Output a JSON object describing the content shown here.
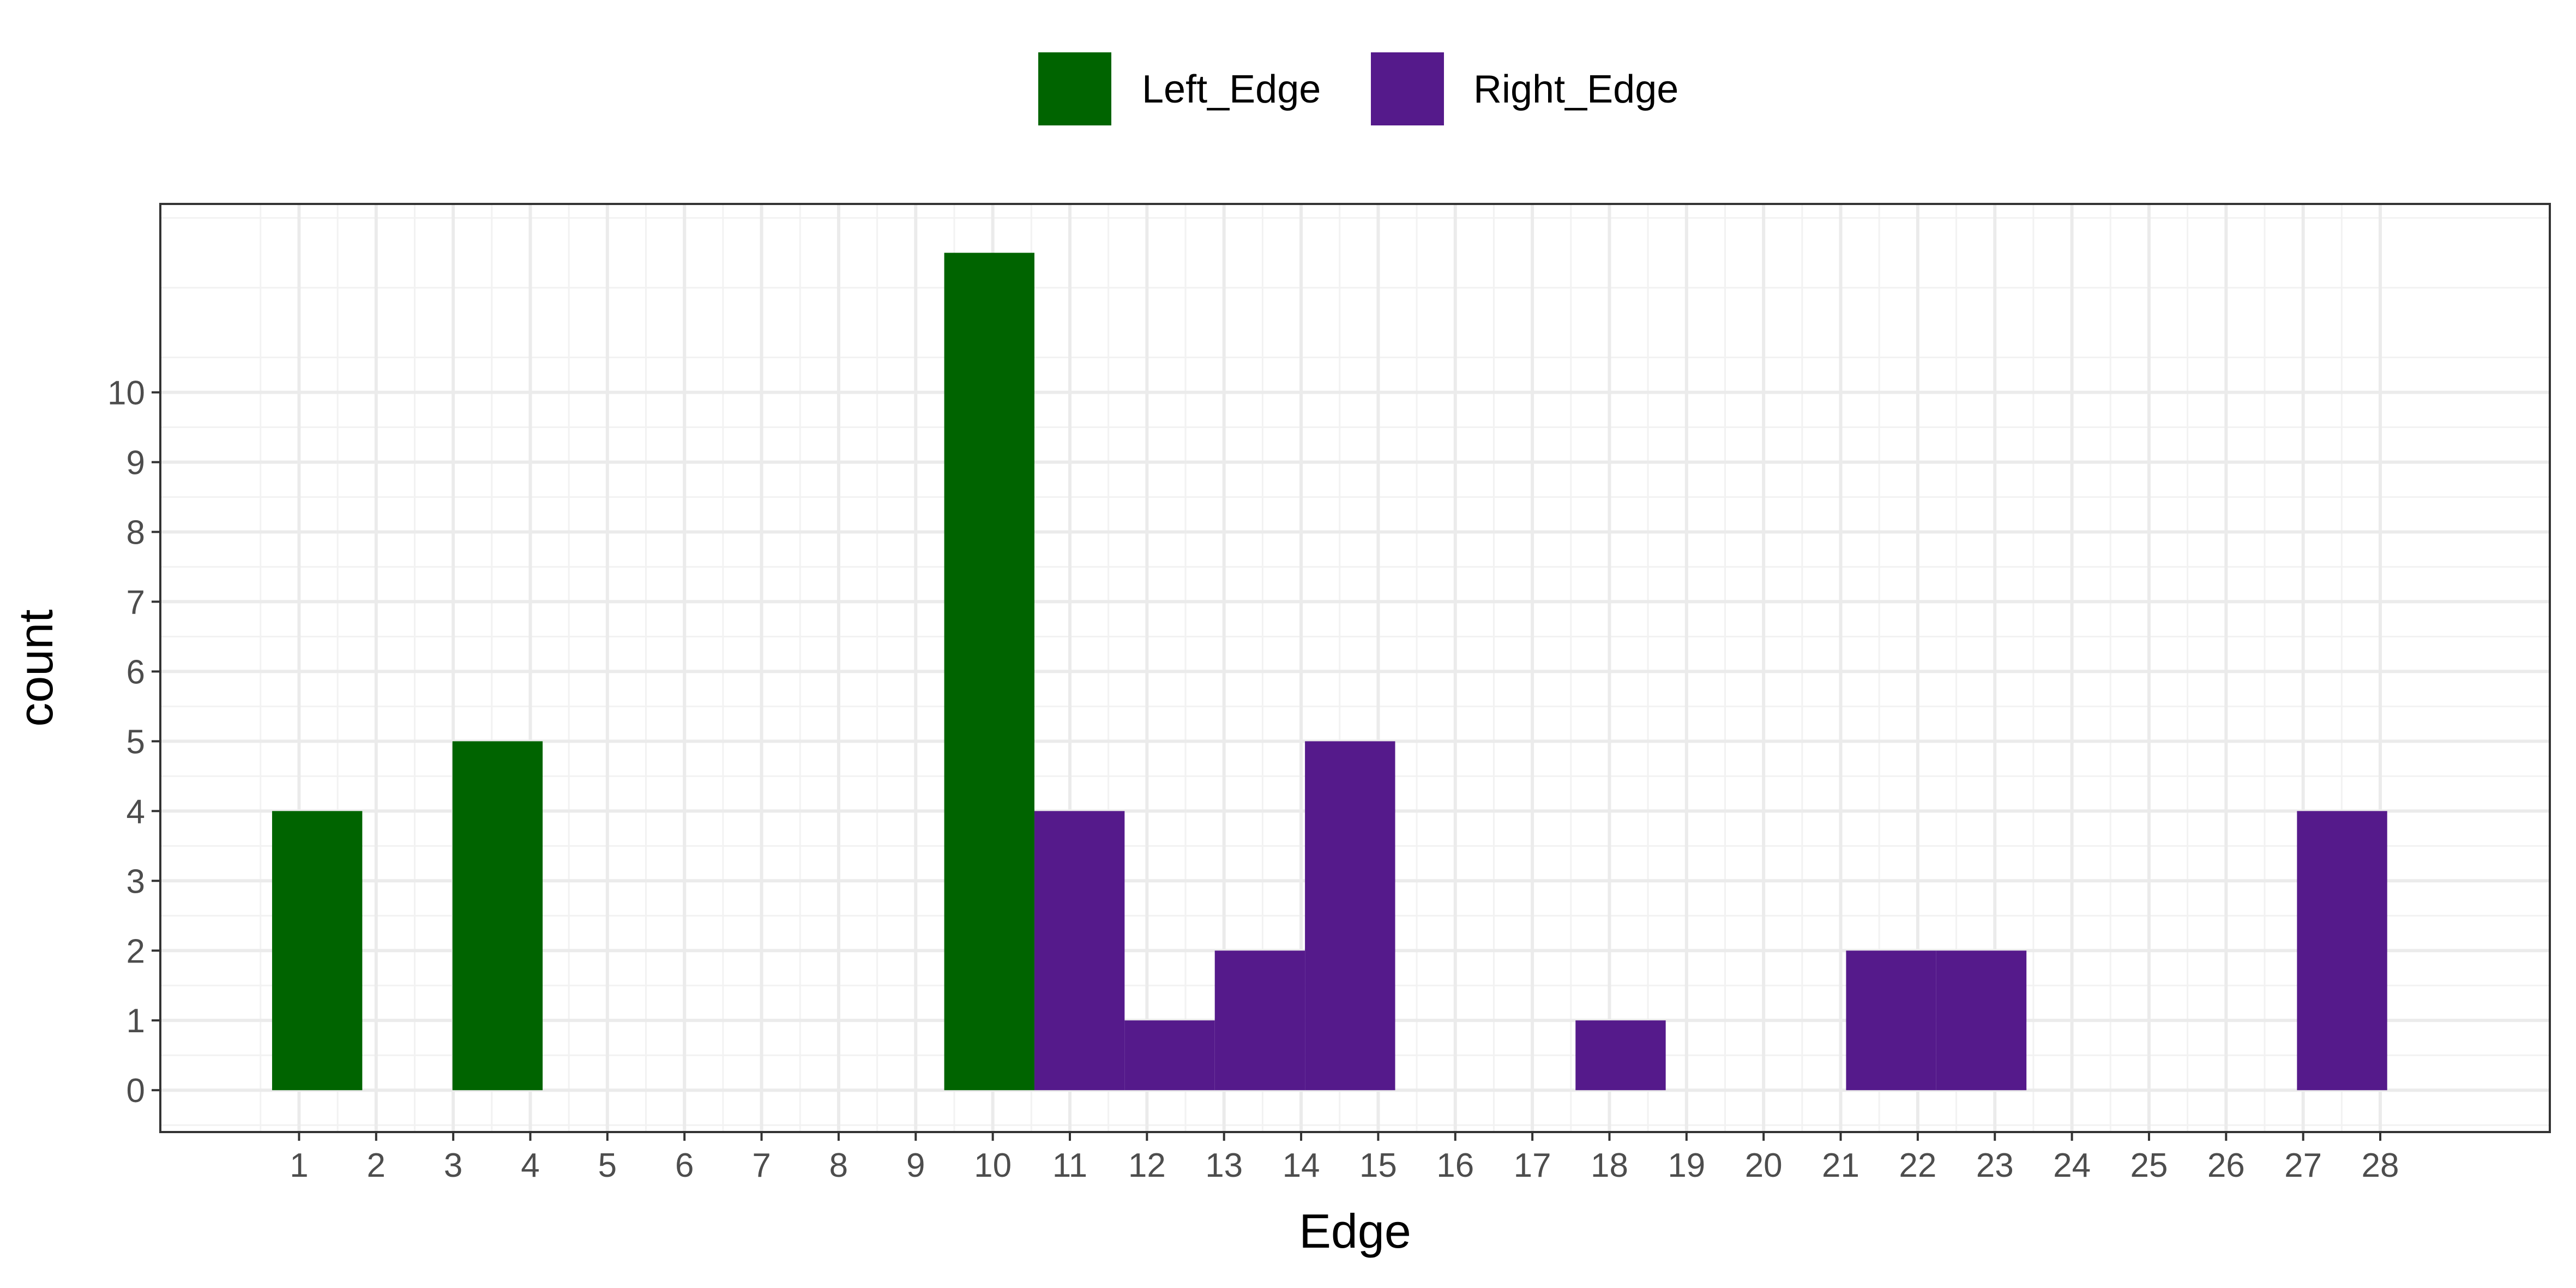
{
  "chart_data": {
    "type": "bar",
    "title": "",
    "xlabel": "Edge",
    "ylabel": "count",
    "x_ticks": [
      "1",
      "2",
      "3",
      "4",
      "5",
      "6",
      "7",
      "8",
      "9",
      "10",
      "11",
      "12",
      "13",
      "14",
      "15",
      "16",
      "17",
      "18",
      "19",
      "20",
      "21",
      "22",
      "23",
      "24",
      "25",
      "26",
      "27",
      "28"
    ],
    "y_ticks": [
      "0",
      "1",
      "2",
      "3",
      "4",
      "5",
      "6",
      "7",
      "8",
      "9",
      "10"
    ],
    "xlim": [
      -0.8,
      30.2
    ],
    "ylim": [
      -0.6,
      12.7
    ],
    "grid": true,
    "legend_position": "top",
    "series": [
      {
        "name": "Left_Edge",
        "color": "#006400",
        "bars": [
          {
            "x0": 0.65,
            "x1": 1.82,
            "value": 4
          },
          {
            "x0": 2.99,
            "x1": 4.16,
            "value": 5
          },
          {
            "x0": 9.37,
            "x1": 10.54,
            "value": 12
          }
        ]
      },
      {
        "name": "Right_Edge",
        "color": "#551A8B",
        "bars": [
          {
            "x0": 10.54,
            "x1": 11.71,
            "value": 4
          },
          {
            "x0": 11.71,
            "x1": 12.88,
            "value": 1
          },
          {
            "x0": 12.88,
            "x1": 14.05,
            "value": 2
          },
          {
            "x0": 14.05,
            "x1": 15.22,
            "value": 5
          },
          {
            "x0": 17.56,
            "x1": 18.73,
            "value": 1
          },
          {
            "x0": 21.07,
            "x1": 22.24,
            "value": 2
          },
          {
            "x0": 22.24,
            "x1": 23.41,
            "value": 2
          },
          {
            "x0": 26.92,
            "x1": 28.09,
            "value": 4
          }
        ]
      }
    ]
  }
}
